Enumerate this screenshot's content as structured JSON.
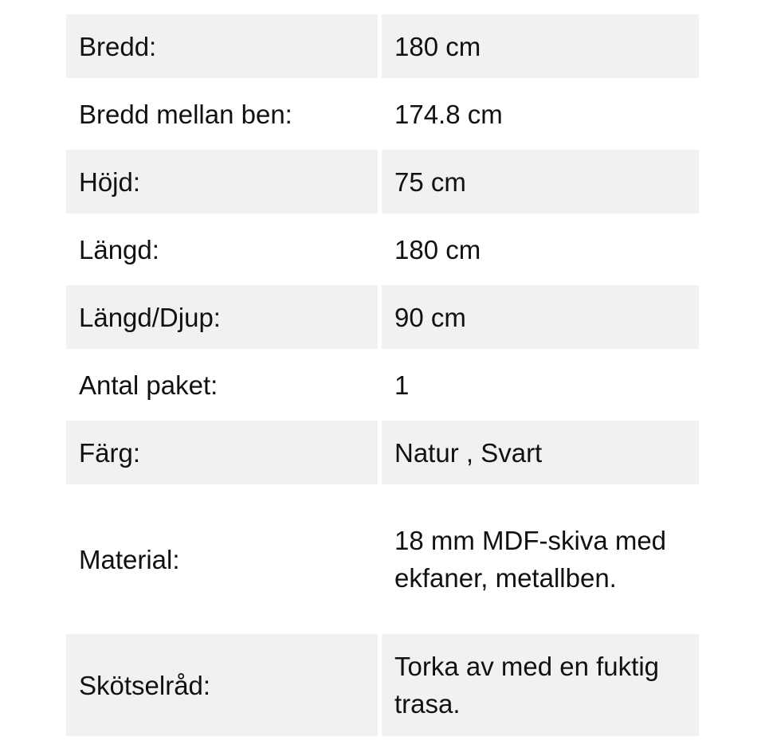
{
  "specs": [
    {
      "label": "Bredd:",
      "value": "180 cm"
    },
    {
      "label": "Bredd mellan ben:",
      "value": "174.8 cm"
    },
    {
      "label": "Höjd:",
      "value": "75 cm"
    },
    {
      "label": "Längd:",
      "value": "180 cm"
    },
    {
      "label": "Längd/Djup:",
      "value": "90 cm"
    },
    {
      "label": "Antal paket:",
      "value": "1"
    },
    {
      "label": "Färg:",
      "value": "Natur , Svart"
    },
    {
      "label": "Material:",
      "value": "18 mm MDF-skiva med ekfaner, metallben."
    },
    {
      "label": "Skötselråd:",
      "value": "Torka av med en fuktig trasa."
    }
  ],
  "colors": {
    "stripe": "#f1f1f1",
    "text": "#111111"
  }
}
